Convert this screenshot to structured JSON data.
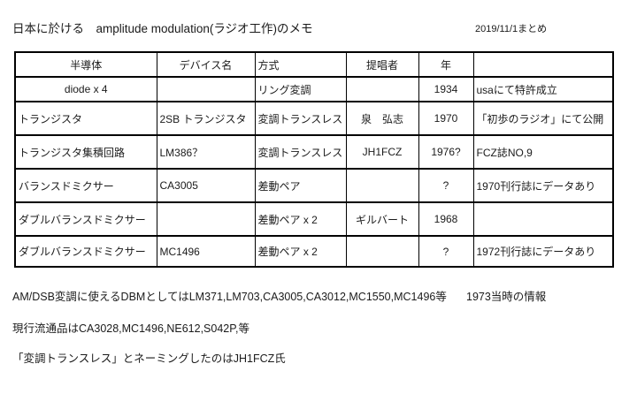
{
  "page": {
    "title": "日本に於ける　amplitude modulation(ラジオ工作)のメモ",
    "date_note": "2019/11/1まとめ"
  },
  "table": {
    "headers": [
      "半導体",
      "デバイス名",
      "方式",
      "提唱者",
      "年",
      ""
    ],
    "rows": [
      [
        "diode x 4",
        "",
        "リング変調",
        "",
        "1934",
        "usaにて特許成立"
      ],
      [
        "トランジスタ",
        "2SB トランジスタ",
        "変調トランスレス",
        "泉　弘志",
        "1970",
        "「初歩のラジオ」にて公開"
      ],
      [
        "トランジスタ集積回路",
        "LM386？",
        "変調トランスレス",
        "JH1FCZ",
        "1976?",
        "FCZ誌NO,9"
      ],
      [
        "バランスドミクサー",
        "CA3005",
        "差動ペア",
        "",
        "?",
        "1970刊行誌にデータあり"
      ],
      [
        "ダブルバランスドミクサー",
        "",
        "差動ペア x 2",
        "ギルバート",
        "1968",
        ""
      ],
      [
        "ダブルバランスドミクサー",
        "MC1496",
        "差動ペア x 2",
        "",
        "?",
        "1972刊行誌にデータあり"
      ]
    ]
  },
  "notes": {
    "line1": "AM/DSB変調に使えるDBMとしてはLM371,LM703,CA3005,CA3012,MC1550,MC1496等",
    "line1_right": "1973当時の情報",
    "line2": "現行流通品はCA3028,MC1496,NE612,S042P,等",
    "line3": "「変調トランスレス」とネーミングしたのはJH1FCZ氏"
  }
}
